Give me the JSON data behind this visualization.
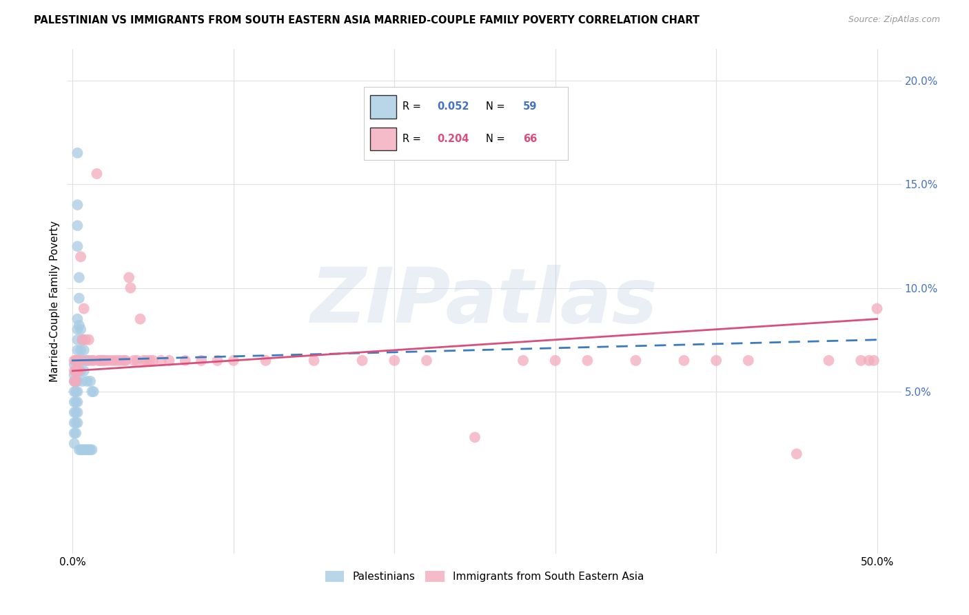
{
  "title": "PALESTINIAN VS IMMIGRANTS FROM SOUTH EASTERN ASIA MARRIED-COUPLE FAMILY POVERTY CORRELATION CHART",
  "source": "Source: ZipAtlas.com",
  "ylabel": "Married-Couple Family Poverty",
  "blue_R": 0.052,
  "blue_N": 59,
  "pink_R": 0.204,
  "pink_N": 66,
  "blue_color": "#a8cce4",
  "pink_color": "#f4aabc",
  "blue_line_color": "#3a7bbf",
  "pink_line_color": "#d94f7c",
  "watermark": "ZIPatlas",
  "watermark_color": "#c8d8e8",
  "background_color": "#ffffff",
  "grid_color": "#e0e0e0",
  "right_axis_color": "#4472c4",
  "blue_legend_color": "#4472c4",
  "pink_legend_color": "#d94f7c",
  "blue_x": [
    0.001,
    0.001,
    0.001,
    0.001,
    0.001,
    0.001,
    0.001,
    0.001,
    0.001,
    0.002,
    0.002,
    0.002,
    0.002,
    0.002,
    0.002,
    0.002,
    0.002,
    0.003,
    0.003,
    0.003,
    0.003,
    0.003,
    0.003,
    0.003,
    0.003,
    0.003,
    0.003,
    0.003,
    0.003,
    0.003,
    0.003,
    0.003,
    0.004,
    0.004,
    0.004,
    0.004,
    0.004,
    0.005,
    0.005,
    0.005,
    0.005,
    0.006,
    0.006,
    0.006,
    0.006,
    0.007,
    0.007,
    0.007,
    0.008,
    0.008,
    0.009,
    0.009,
    0.01,
    0.01,
    0.011,
    0.011,
    0.012,
    0.012,
    0.013
  ],
  "blue_y": [
    0.063,
    0.058,
    0.055,
    0.05,
    0.045,
    0.04,
    0.035,
    0.03,
    0.025,
    0.065,
    0.06,
    0.055,
    0.05,
    0.045,
    0.04,
    0.035,
    0.03,
    0.165,
    0.14,
    0.13,
    0.12,
    0.085,
    0.08,
    0.075,
    0.07,
    0.065,
    0.06,
    0.055,
    0.05,
    0.045,
    0.04,
    0.035,
    0.105,
    0.095,
    0.082,
    0.065,
    0.022,
    0.08,
    0.07,
    0.06,
    0.022,
    0.075,
    0.065,
    0.055,
    0.022,
    0.07,
    0.06,
    0.022,
    0.065,
    0.022,
    0.055,
    0.022,
    0.065,
    0.022,
    0.055,
    0.022,
    0.05,
    0.022,
    0.05
  ],
  "pink_x": [
    0.001,
    0.001,
    0.001,
    0.002,
    0.002,
    0.002,
    0.003,
    0.003,
    0.004,
    0.004,
    0.005,
    0.005,
    0.006,
    0.007,
    0.008,
    0.009,
    0.01,
    0.012,
    0.013,
    0.015,
    0.016,
    0.017,
    0.018,
    0.019,
    0.02,
    0.022,
    0.024,
    0.026,
    0.028,
    0.03,
    0.032,
    0.033,
    0.035,
    0.036,
    0.038,
    0.04,
    0.042,
    0.044,
    0.046,
    0.048,
    0.05,
    0.055,
    0.06,
    0.07,
    0.08,
    0.09,
    0.1,
    0.12,
    0.15,
    0.18,
    0.2,
    0.22,
    0.25,
    0.28,
    0.3,
    0.32,
    0.35,
    0.38,
    0.4,
    0.42,
    0.45,
    0.47,
    0.49,
    0.495,
    0.498,
    0.5
  ],
  "pink_y": [
    0.065,
    0.06,
    0.055,
    0.065,
    0.06,
    0.055,
    0.065,
    0.06,
    0.065,
    0.06,
    0.115,
    0.065,
    0.075,
    0.09,
    0.075,
    0.065,
    0.075,
    0.065,
    0.065,
    0.155,
    0.065,
    0.065,
    0.065,
    0.065,
    0.065,
    0.065,
    0.065,
    0.065,
    0.065,
    0.065,
    0.065,
    0.065,
    0.105,
    0.1,
    0.065,
    0.065,
    0.085,
    0.065,
    0.065,
    0.065,
    0.065,
    0.065,
    0.065,
    0.065,
    0.065,
    0.065,
    0.065,
    0.065,
    0.065,
    0.065,
    0.065,
    0.065,
    0.028,
    0.065,
    0.065,
    0.065,
    0.065,
    0.065,
    0.065,
    0.065,
    0.02,
    0.065,
    0.065,
    0.065,
    0.065,
    0.09
  ]
}
